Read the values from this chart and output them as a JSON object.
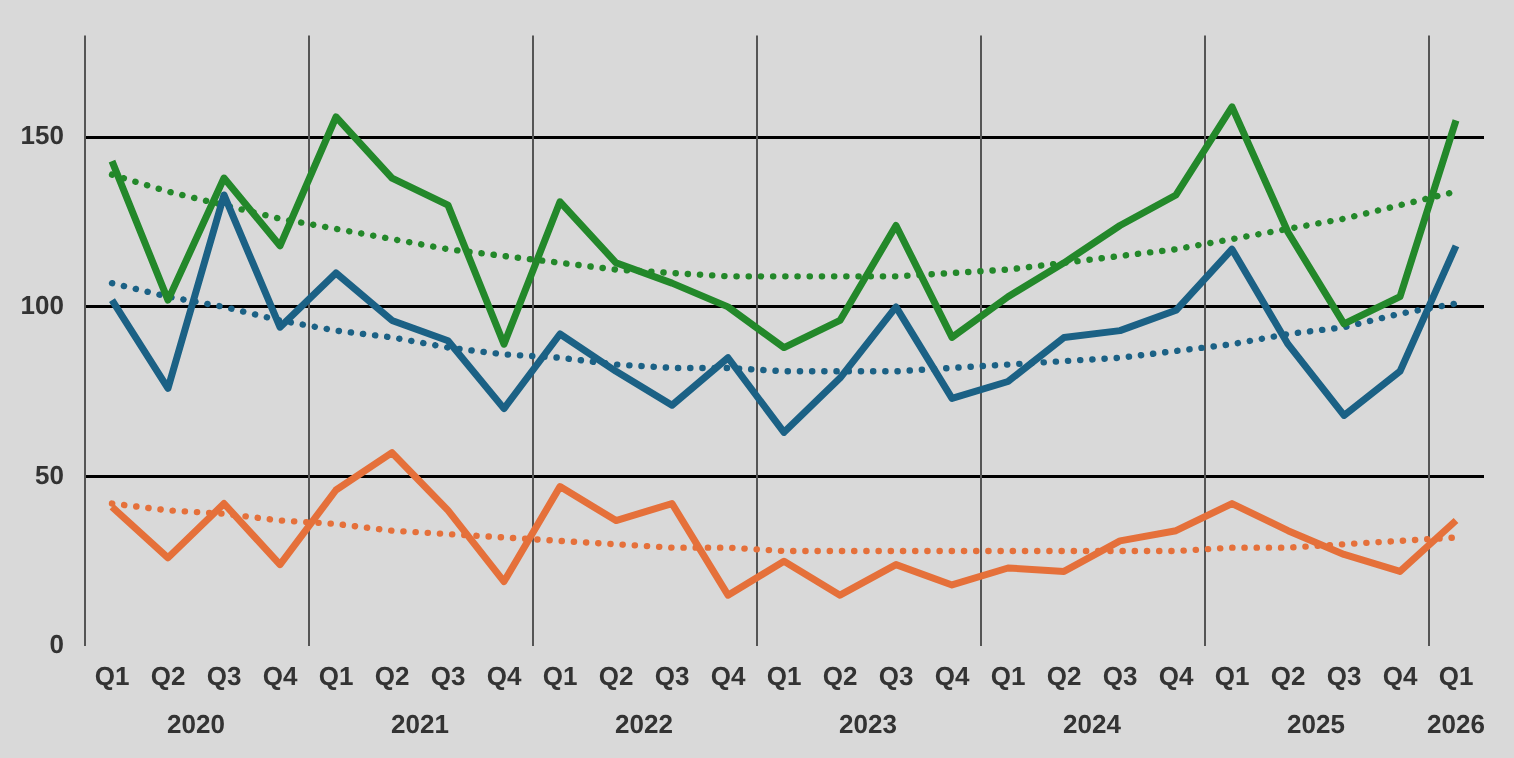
{
  "chart_data": {
    "type": "line",
    "categories": [
      "Q1",
      "Q2",
      "Q3",
      "Q4",
      "Q1",
      "Q2",
      "Q3",
      "Q4",
      "Q1",
      "Q2",
      "Q3",
      "Q4",
      "Q1",
      "Q2",
      "Q3",
      "Q4",
      "Q1",
      "Q2",
      "Q3",
      "Q4",
      "Q1",
      "Q2",
      "Q3",
      "Q4",
      "Q1"
    ],
    "annotations": [
      "2020",
      "2021",
      "2022",
      "2023",
      "2024",
      "2025",
      "2026"
    ],
    "ylim": [
      0,
      180
    ],
    "yticks": [
      0,
      50,
      100,
      150
    ],
    "grid": "y",
    "legend": false,
    "marker": "none",
    "series": [
      {
        "color": "#23882a",
        "line_style": "solid",
        "values": [
          143,
          102,
          138,
          118,
          156,
          138,
          130,
          89,
          131,
          113,
          107,
          100,
          88,
          96,
          124,
          91,
          103,
          113,
          124,
          133,
          159,
          122,
          95,
          103,
          155
        ]
      },
      {
        "color": "#1b6185",
        "line_style": "solid",
        "values": [
          102,
          76,
          133,
          94,
          110,
          96,
          90,
          70,
          92,
          81,
          71,
          85,
          63,
          79,
          100,
          73,
          78,
          91,
          93,
          99,
          117,
          89,
          68,
          81,
          118
        ]
      },
      {
        "color": "#e5703a",
        "line_style": "solid",
        "values": [
          41,
          26,
          42,
          24,
          46,
          57,
          40,
          19,
          47,
          37,
          42,
          15,
          25,
          15,
          24,
          18,
          23,
          22,
          31,
          34,
          42,
          34,
          27,
          22,
          37
        ]
      },
      {
        "color": "#23882a",
        "line_style": "dotted",
        "values": [
          139,
          134,
          130,
          126,
          123,
          120,
          117,
          115,
          113,
          111,
          110,
          109,
          109,
          109,
          109,
          110,
          111,
          113,
          115,
          117,
          120,
          123,
          126,
          130,
          134
        ]
      },
      {
        "color": "#1b6185",
        "line_style": "dotted",
        "values": [
          107,
          103,
          100,
          96,
          93,
          91,
          88,
          86,
          85,
          83,
          82,
          82,
          81,
          81,
          81,
          82,
          83,
          84,
          85,
          87,
          89,
          92,
          94,
          98,
          101
        ]
      },
      {
        "color": "#e5703a",
        "line_style": "dotted",
        "values": [
          42,
          40,
          39,
          37,
          36,
          34,
          33,
          32,
          31,
          30,
          29,
          29,
          28,
          28,
          28,
          28,
          28,
          28,
          28,
          28,
          29,
          29,
          30,
          31,
          32
        ]
      }
    ]
  }
}
